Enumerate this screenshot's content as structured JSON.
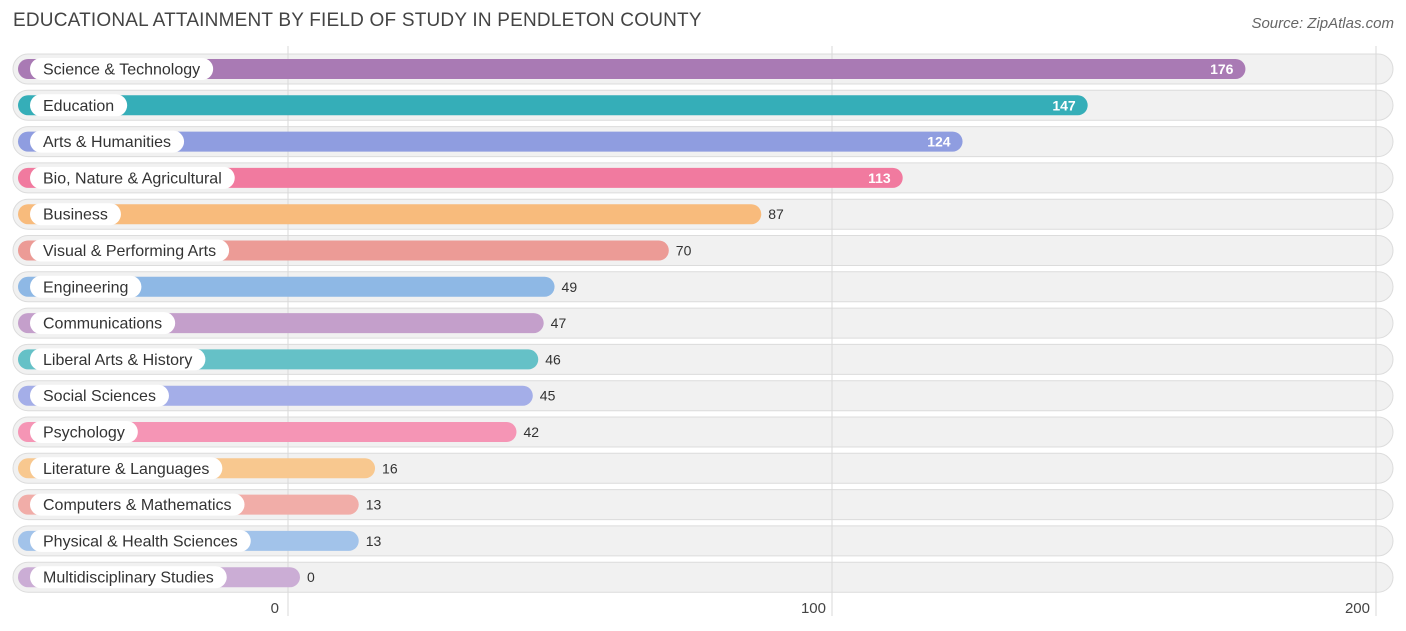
{
  "chart_data": {
    "type": "bar",
    "orientation": "horizontal",
    "title": "EDUCATIONAL ATTAINMENT BY FIELD OF STUDY IN PENDLETON COUNTY",
    "source": "Source: ZipAtlas.com",
    "xlim": [
      0,
      200
    ],
    "xticks": [
      0,
      100,
      200
    ],
    "categories": [
      "Science & Technology",
      "Education",
      "Arts & Humanities",
      "Bio, Nature & Agricultural",
      "Business",
      "Visual & Performing Arts",
      "Engineering",
      "Communications",
      "Liberal Arts & History",
      "Social Sciences",
      "Psychology",
      "Literature & Languages",
      "Computers & Mathematics",
      "Physical & Health Sciences",
      "Multidisciplinary Studies"
    ],
    "values": [
      176,
      147,
      124,
      113,
      87,
      70,
      49,
      47,
      46,
      45,
      42,
      16,
      13,
      13,
      0
    ],
    "colors": [
      "#a97ab4",
      "#35aeb8",
      "#8f9de0",
      "#f17a9f",
      "#f8bb7c",
      "#ec9b96",
      "#8eb8e5",
      "#c49fcb",
      "#65c1c7",
      "#a4aee8",
      "#f595b5",
      "#f8c88f",
      "#f1ada8",
      "#a2c3ea",
      "#cbadd5"
    ]
  }
}
